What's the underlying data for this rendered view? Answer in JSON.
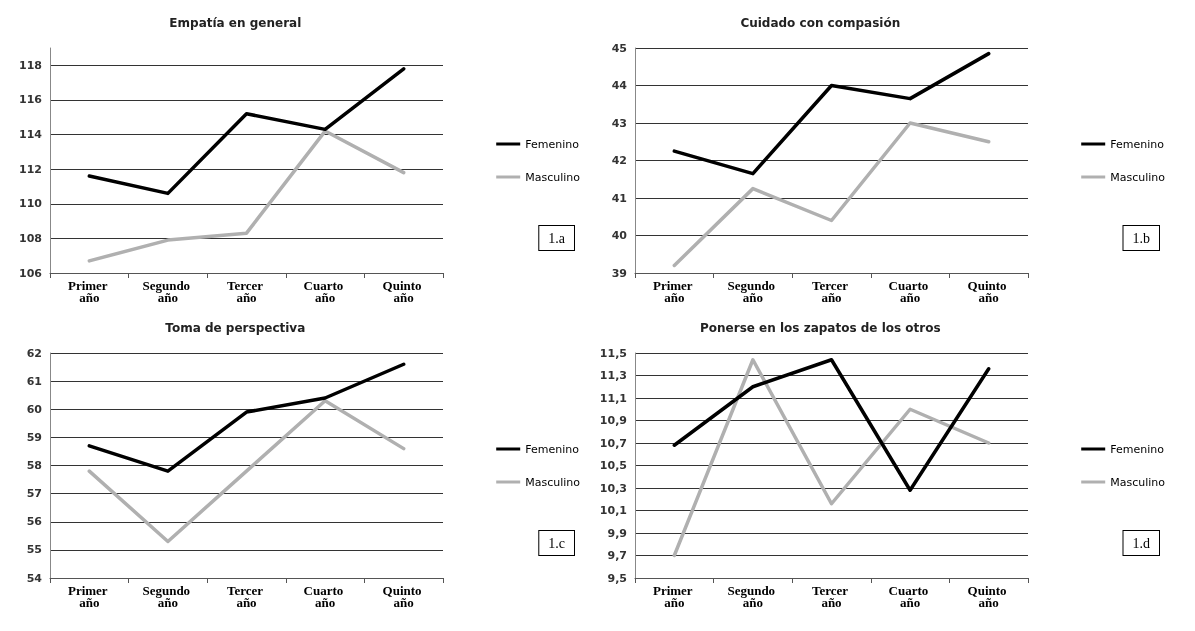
{
  "chart_data": [
    {
      "type": "line",
      "title": "Empatía en general",
      "categories": [
        "Primer año",
        "Segundo año",
        "Tercer año",
        "Cuarto año",
        "Quinto año"
      ],
      "series": [
        {
          "name": "Femenino",
          "color": "#000000",
          "values": [
            111.6,
            110.6,
            115.2,
            114.3,
            117.8
          ]
        },
        {
          "name": "Masculino",
          "color": "#b0b0b0",
          "values": [
            106.7,
            107.9,
            108.3,
            114.2,
            111.8
          ]
        }
      ],
      "ylim": [
        106,
        119
      ],
      "yticks": [
        106,
        108,
        110,
        112,
        114,
        116,
        118
      ],
      "grid": "y",
      "legend": "right",
      "marker": "none",
      "line_style": "solid",
      "annotations": [
        "1.a"
      ]
    },
    {
      "type": "line",
      "title": "Cuidado con compasión",
      "categories": [
        "Primer año",
        "Segundo año",
        "Tercer año",
        "Cuarto año",
        "Quinto año"
      ],
      "series": [
        {
          "name": "Femenino",
          "color": "#000000",
          "values": [
            42.25,
            41.65,
            44.0,
            43.65,
            44.85
          ]
        },
        {
          "name": "Masculino",
          "color": "#b0b0b0",
          "values": [
            39.2,
            41.25,
            40.4,
            43.0,
            42.5
          ]
        }
      ],
      "ylim": [
        39,
        45
      ],
      "yticks": [
        39,
        40,
        41,
        42,
        43,
        44,
        45
      ],
      "grid": "y",
      "legend": "right",
      "marker": "none",
      "line_style": "solid",
      "annotations": [
        "1.b"
      ]
    },
    {
      "type": "line",
      "title": "Toma de perspectiva",
      "categories": [
        "Primer año",
        "Segundo año",
        "Tercer año",
        "Cuarto año",
        "Quinto año"
      ],
      "series": [
        {
          "name": "Femenino",
          "color": "#000000",
          "values": [
            58.7,
            57.8,
            59.9,
            60.4,
            61.6
          ]
        },
        {
          "name": "Masculino",
          "color": "#b0b0b0",
          "values": [
            57.8,
            55.3,
            57.8,
            60.3,
            58.6
          ]
        }
      ],
      "ylim": [
        54,
        62
      ],
      "yticks": [
        54,
        55,
        56,
        57,
        58,
        59,
        60,
        61,
        62
      ],
      "grid": "y",
      "legend": "right",
      "marker": "none",
      "line_style": "solid",
      "annotations": [
        "1.c"
      ]
    },
    {
      "type": "line",
      "title": "Ponerse en los zapatos de los otros",
      "categories": [
        "Primer año",
        "Segundo año",
        "Tercer año",
        "Cuarto año",
        "Quinto año"
      ],
      "series": [
        {
          "name": "Femenino",
          "color": "#000000",
          "values": [
            10.68,
            11.2,
            11.44,
            10.28,
            11.36
          ]
        },
        {
          "name": "Masculino",
          "color": "#b0b0b0",
          "values": [
            9.7,
            11.44,
            10.16,
            11.0,
            10.7
          ]
        }
      ],
      "ylim": [
        9.5,
        11.5
      ],
      "yticks": [
        {
          "value": 9.5,
          "label": "9,5"
        },
        {
          "value": 9.7,
          "label": "9,7"
        },
        {
          "value": 9.9,
          "label": "9,9"
        },
        {
          "value": 10.1,
          "label": "10,1"
        },
        {
          "value": 10.3,
          "label": "10,3"
        },
        {
          "value": 10.5,
          "label": "10,5"
        },
        {
          "value": 10.7,
          "label": "10,7"
        },
        {
          "value": 10.9,
          "label": "10,9"
        },
        {
          "value": 11.1,
          "label": "11,1"
        },
        {
          "value": 11.3,
          "label": "11,3"
        },
        {
          "value": 11.5,
          "label": "11,5"
        }
      ],
      "grid": "y",
      "legend": "right",
      "marker": "none",
      "line_style": "solid",
      "annotations": [
        "1.d"
      ]
    }
  ]
}
